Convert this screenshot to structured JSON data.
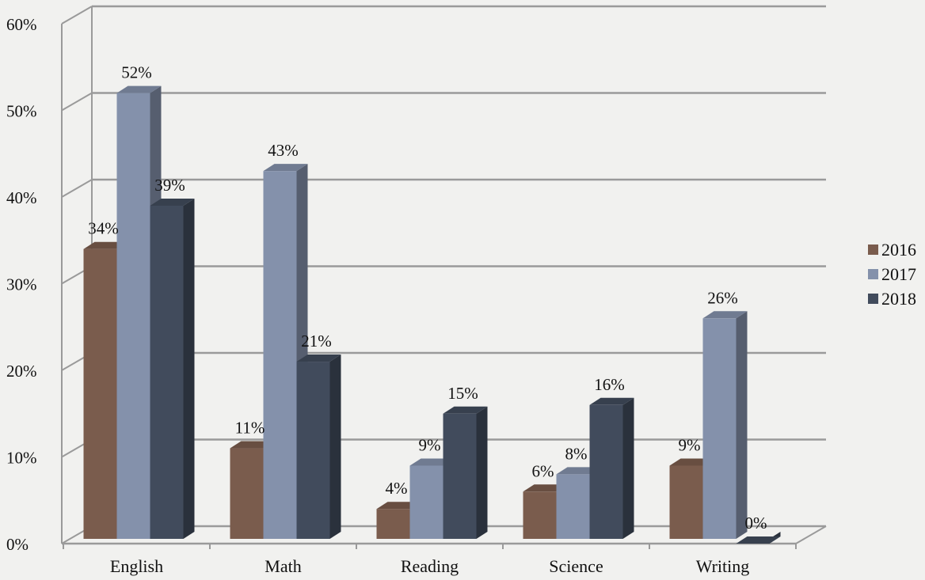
{
  "chart_data": {
    "type": "bar",
    "style": "3d-clustered",
    "categories": [
      "English",
      "Math",
      "Reading",
      "Science",
      "Writing"
    ],
    "series": [
      {
        "name": "2016",
        "color": "#7a5c4d",
        "values": [
          34,
          11,
          4,
          6,
          9
        ]
      },
      {
        "name": "2017",
        "color": "#8491ab",
        "values": [
          52,
          43,
          9,
          8,
          26
        ]
      },
      {
        "name": "2018",
        "color": "#414b5c",
        "values": [
          39,
          21,
          15,
          16,
          0
        ]
      }
    ],
    "data_labels": [
      [
        "34%",
        "11%",
        "4%",
        "6%",
        "9%"
      ],
      [
        "52%",
        "43%",
        "9%",
        "8%",
        "26%"
      ],
      [
        "39%",
        "21%",
        "15%",
        "16%",
        "0%"
      ]
    ],
    "yticks": [
      "0%",
      "10%",
      "20%",
      "30%",
      "40%",
      "50%",
      "60%"
    ],
    "ylim": [
      0,
      60
    ],
    "ytick_step": 10,
    "grid": true,
    "legend": "right",
    "title": "",
    "xlabel": "",
    "ylabel": ""
  }
}
